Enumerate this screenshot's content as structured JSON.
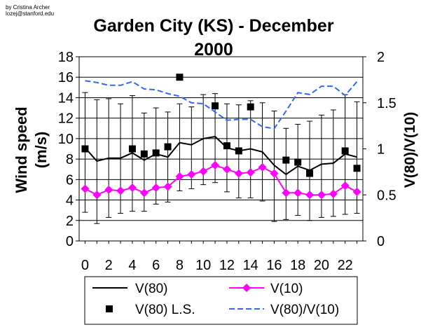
{
  "credit": {
    "line1": "by Cristina Archer",
    "line2": "lozej@stanford.edu"
  },
  "chart_data": {
    "type": "line",
    "title_line1": "Garden City (KS) - December",
    "title_line2": "2000",
    "ylabel_left_line1": "Wind speed",
    "ylabel_left_line2": "(m/s)",
    "ylabel_right": "V(80)/V(10)",
    "xlim": [
      -0.5,
      23.5
    ],
    "ylim_left": [
      0,
      18
    ],
    "ylim_right": [
      0,
      2
    ],
    "x_ticks": [
      0,
      2,
      4,
      6,
      8,
      10,
      12,
      14,
      16,
      18,
      20,
      22
    ],
    "y_ticks_left": [
      0,
      2,
      4,
      6,
      8,
      10,
      12,
      14,
      16,
      18
    ],
    "y_ticks_right": [
      {
        "value": 0,
        "label": "0"
      },
      {
        "value": 0.5,
        "label": "0.5"
      },
      {
        "value": 1,
        "label": "1"
      },
      {
        "value": 1.5,
        "label": "1.5"
      },
      {
        "value": 2,
        "label": "2"
      }
    ],
    "grid": "horizontal",
    "colors": {
      "v80": "#000000",
      "v10": "#ff00ff",
      "ratio": "#3366ff",
      "ls": "#000000",
      "errorbar": "#000000"
    },
    "x": [
      0,
      1,
      2,
      3,
      4,
      5,
      6,
      7,
      8,
      9,
      10,
      11,
      12,
      13,
      14,
      15,
      16,
      17,
      18,
      19,
      20,
      21,
      22,
      23
    ],
    "series": [
      {
        "name": "V(80)",
        "axis": "left",
        "values": [
          9.1,
          7.8,
          8.1,
          8.1,
          8.6,
          7.9,
          8.5,
          8.2,
          9.6,
          9.4,
          10.0,
          10.2,
          9.1,
          8.8,
          9.0,
          8.7,
          7.4,
          6.5,
          7.3,
          6.9,
          7.5,
          7.6,
          8.5,
          8.2
        ]
      },
      {
        "name": "V(10)",
        "axis": "left",
        "values": [
          5.1,
          4.5,
          5.0,
          4.9,
          5.2,
          4.7,
          5.2,
          5.3,
          6.3,
          6.5,
          6.8,
          7.4,
          7.0,
          6.6,
          6.7,
          7.2,
          6.6,
          4.7,
          4.7,
          4.5,
          4.5,
          4.6,
          5.4,
          4.8
        ]
      },
      {
        "name": "V(80) L.S.",
        "axis": "left",
        "style": "markers",
        "x": [
          0,
          4,
          5,
          6,
          7,
          8,
          11,
          12,
          13,
          14,
          17,
          18,
          19,
          22,
          23
        ],
        "values": [
          9.0,
          9.0,
          8.5,
          8.6,
          9.2,
          16.0,
          13.2,
          9.3,
          8.8,
          13.1,
          7.9,
          7.7,
          6.6,
          8.8,
          7.1
        ]
      },
      {
        "name": "V(80)/V(10)",
        "axis": "right",
        "style": "dashed",
        "values": [
          1.74,
          1.72,
          1.69,
          1.69,
          1.73,
          1.65,
          1.64,
          1.6,
          1.57,
          1.5,
          1.49,
          1.4,
          1.31,
          1.32,
          1.32,
          1.24,
          1.22,
          1.41,
          1.61,
          1.59,
          1.68,
          1.68,
          1.58,
          1.73
        ]
      }
    ],
    "error_bars": {
      "applies_to": "V(80)",
      "upper": [
        14.5,
        13.8,
        13.9,
        13.4,
        14.2,
        12.5,
        13.0,
        12.6,
        13.4,
        13.1,
        14.3,
        14.4,
        13.4,
        13.3,
        13.7,
        13.5,
        12.7,
        11.0,
        11.4,
        11.7,
        12.3,
        12.8,
        14.3,
        13.6
      ],
      "lower": [
        2.8,
        1.7,
        2.3,
        2.7,
        2.9,
        2.9,
        3.6,
        3.8,
        4.9,
        5.1,
        5.5,
        5.7,
        4.8,
        4.2,
        4.2,
        3.9,
        1.9,
        2.1,
        2.5,
        2.0,
        2.3,
        2.4,
        2.6,
        2.7
      ]
    }
  }
}
